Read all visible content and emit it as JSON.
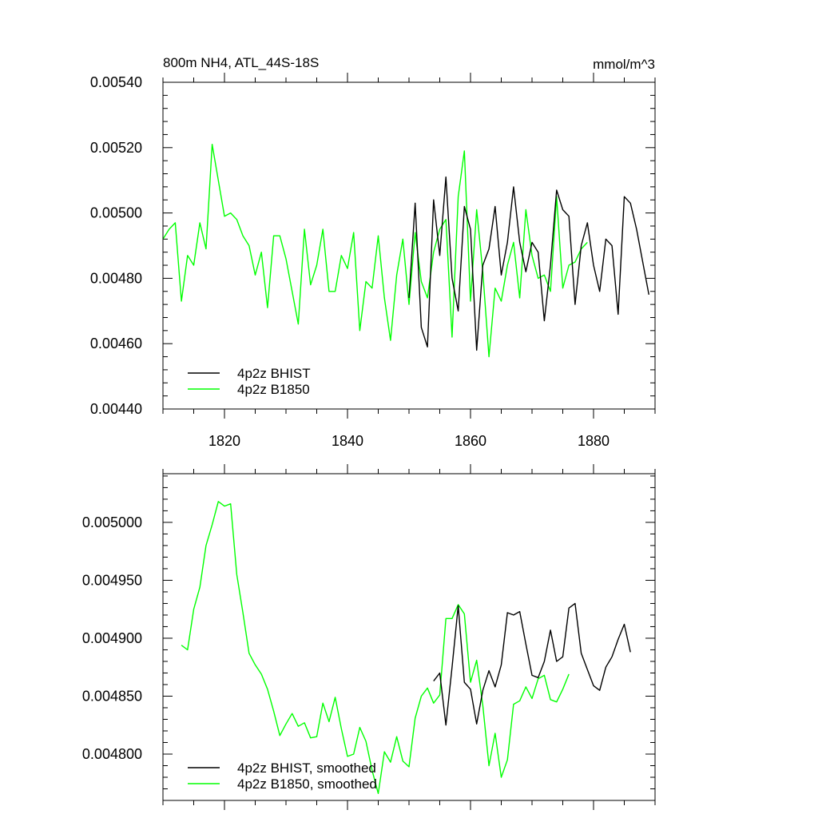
{
  "chart_data": [
    {
      "type": "line",
      "title_left": "800m NH4, ATL_44S-18S",
      "title_right": "mmol/m^3",
      "xlim": [
        1810,
        1890
      ],
      "ylim": [
        0.0044,
        0.0054
      ],
      "xticks": [
        1820,
        1840,
        1860,
        1880
      ],
      "xtick_labels": [
        "1820",
        "1840",
        "1860",
        "1880"
      ],
      "yticks": [
        0.0044,
        0.0046,
        0.0048,
        0.005,
        0.0052,
        0.0054
      ],
      "ytick_labels": [
        "0.00440",
        "0.00460",
        "0.00480",
        "0.00500",
        "0.00520",
        "0.00540"
      ],
      "legend_placement": "bottom-left",
      "series": [
        {
          "name": "4p2z BHIST",
          "color": "#000000",
          "x": [
            1850,
            1851,
            1852,
            1853,
            1854,
            1855,
            1856,
            1857,
            1858,
            1859,
            1860,
            1861,
            1862,
            1863,
            1864,
            1865,
            1866,
            1867,
            1868,
            1869,
            1870,
            1871,
            1872,
            1873,
            1874,
            1875,
            1876,
            1877,
            1878,
            1879,
            1880,
            1881,
            1882,
            1883,
            1884,
            1885,
            1886,
            1887,
            1888,
            1889
          ],
          "values": [
            0.00474,
            0.00503,
            0.00465,
            0.00459,
            0.00504,
            0.00487,
            0.00511,
            0.0048,
            0.0047,
            0.00502,
            0.00495,
            0.00458,
            0.00484,
            0.00489,
            0.00502,
            0.00481,
            0.00491,
            0.00508,
            0.00491,
            0.00482,
            0.00491,
            0.00488,
            0.00467,
            0.00484,
            0.00507,
            0.00501,
            0.00499,
            0.00472,
            0.0049,
            0.00497,
            0.00484,
            0.00476,
            0.00492,
            0.0049,
            0.00469,
            0.00505,
            0.00503,
            0.00495,
            0.00485,
            0.00475
          ]
        },
        {
          "name": "4p2z B1850",
          "color": "#00ff00",
          "x": [
            1810,
            1811,
            1812,
            1813,
            1814,
            1815,
            1816,
            1817,
            1818,
            1819,
            1820,
            1821,
            1822,
            1823,
            1824,
            1825,
            1826,
            1827,
            1828,
            1829,
            1830,
            1831,
            1832,
            1833,
            1834,
            1835,
            1836,
            1837,
            1838,
            1839,
            1840,
            1841,
            1842,
            1843,
            1844,
            1845,
            1846,
            1847,
            1848,
            1849,
            1850,
            1851,
            1852,
            1853,
            1854,
            1855,
            1856,
            1857,
            1858,
            1859,
            1860,
            1861,
            1862,
            1863,
            1864,
            1865,
            1866,
            1867,
            1868,
            1869,
            1870,
            1871,
            1872,
            1873,
            1874,
            1875,
            1876,
            1877,
            1878,
            1879
          ],
          "values": [
            0.00492,
            0.00495,
            0.00497,
            0.00473,
            0.00487,
            0.00484,
            0.00497,
            0.00489,
            0.00521,
            0.0051,
            0.00499,
            0.005,
            0.00498,
            0.00493,
            0.0049,
            0.00481,
            0.00488,
            0.00471,
            0.00493,
            0.00493,
            0.00486,
            0.00476,
            0.00466,
            0.00495,
            0.00478,
            0.00484,
            0.00495,
            0.00476,
            0.00476,
            0.00487,
            0.00483,
            0.00494,
            0.00464,
            0.00479,
            0.00477,
            0.00493,
            0.00474,
            0.00461,
            0.00481,
            0.00492,
            0.00472,
            0.00494,
            0.00479,
            0.00474,
            0.00488,
            0.00495,
            0.00498,
            0.00462,
            0.00505,
            0.00519,
            0.00473,
            0.00501,
            0.00482,
            0.00456,
            0.00477,
            0.00473,
            0.00484,
            0.00491,
            0.00474,
            0.00501,
            0.00487,
            0.0048,
            0.00481,
            0.00476,
            0.00505,
            0.00477,
            0.00484,
            0.00485,
            0.00489,
            0.00491
          ]
        }
      ]
    },
    {
      "type": "line",
      "xlim": [
        1810,
        1890
      ],
      "ylim": [
        0.00476,
        0.005042
      ],
      "xticks": [
        1820,
        1840,
        1860,
        1880
      ],
      "xtick_labels": [],
      "yticks": [
        0.0048,
        0.00485,
        0.0049,
        0.00495,
        0.005
      ],
      "ytick_labels": [
        "0.004800",
        "0.004850",
        "0.004900",
        "0.004950",
        "0.005000"
      ],
      "legend_placement": "bottom-left",
      "series": [
        {
          "name": "4p2z BHIST, smoothed",
          "color": "#000000",
          "x": [
            1854,
            1855,
            1856,
            1857,
            1858,
            1859,
            1860,
            1861,
            1862,
            1863,
            1864,
            1865,
            1866,
            1867,
            1868,
            1869,
            1870,
            1871,
            1872,
            1873,
            1874,
            1875,
            1876,
            1877,
            1878,
            1879,
            1880,
            1881,
            1882,
            1883,
            1884,
            1885,
            1886
          ],
          "values": [
            0.004863,
            0.00487,
            0.004825,
            0.004875,
            0.004928,
            0.004862,
            0.004856,
            0.004826,
            0.004855,
            0.004872,
            0.004858,
            0.004877,
            0.004922,
            0.00492,
            0.004923,
            0.004895,
            0.004868,
            0.004866,
            0.00488,
            0.004907,
            0.00488,
            0.004884,
            0.004926,
            0.00493,
            0.004887,
            0.004873,
            0.004859,
            0.004855,
            0.004875,
            0.004884,
            0.004899,
            0.004912,
            0.004888
          ]
        },
        {
          "name": "4p2z B1850, smoothed",
          "color": "#00ff00",
          "x": [
            1813,
            1814,
            1815,
            1816,
            1817,
            1818,
            1819,
            1820,
            1821,
            1822,
            1823,
            1824,
            1825,
            1826,
            1827,
            1828,
            1829,
            1830,
            1831,
            1832,
            1833,
            1834,
            1835,
            1836,
            1837,
            1838,
            1839,
            1840,
            1841,
            1842,
            1843,
            1844,
            1845,
            1846,
            1847,
            1848,
            1849,
            1850,
            1851,
            1852,
            1853,
            1854,
            1855,
            1856,
            1857,
            1858,
            1859,
            1860,
            1861,
            1862,
            1863,
            1864,
            1865,
            1866,
            1867,
            1868,
            1869,
            1870,
            1871,
            1872,
            1873,
            1874,
            1875,
            1876
          ],
          "values": [
            0.004894,
            0.00489,
            0.004925,
            0.004944,
            0.00498,
            0.004998,
            0.005018,
            0.005014,
            0.005016,
            0.004955,
            0.004922,
            0.004887,
            0.004877,
            0.004869,
            0.004856,
            0.004837,
            0.004816,
            0.004826,
            0.004835,
            0.004824,
            0.004827,
            0.004814,
            0.004815,
            0.004844,
            0.004828,
            0.004849,
            0.004822,
            0.004798,
            0.0048,
            0.004823,
            0.004811,
            0.004786,
            0.004766,
            0.004802,
            0.004793,
            0.004815,
            0.004794,
            0.004789,
            0.004831,
            0.00485,
            0.004857,
            0.004844,
            0.004851,
            0.004917,
            0.004917,
            0.004929,
            0.004921,
            0.004862,
            0.004881,
            0.004842,
            0.00479,
            0.004818,
            0.00478,
            0.004795,
            0.004843,
            0.004846,
            0.004858,
            0.004848,
            0.004865,
            0.004868,
            0.004847,
            0.004845,
            0.004856,
            0.004869
          ]
        }
      ]
    }
  ]
}
